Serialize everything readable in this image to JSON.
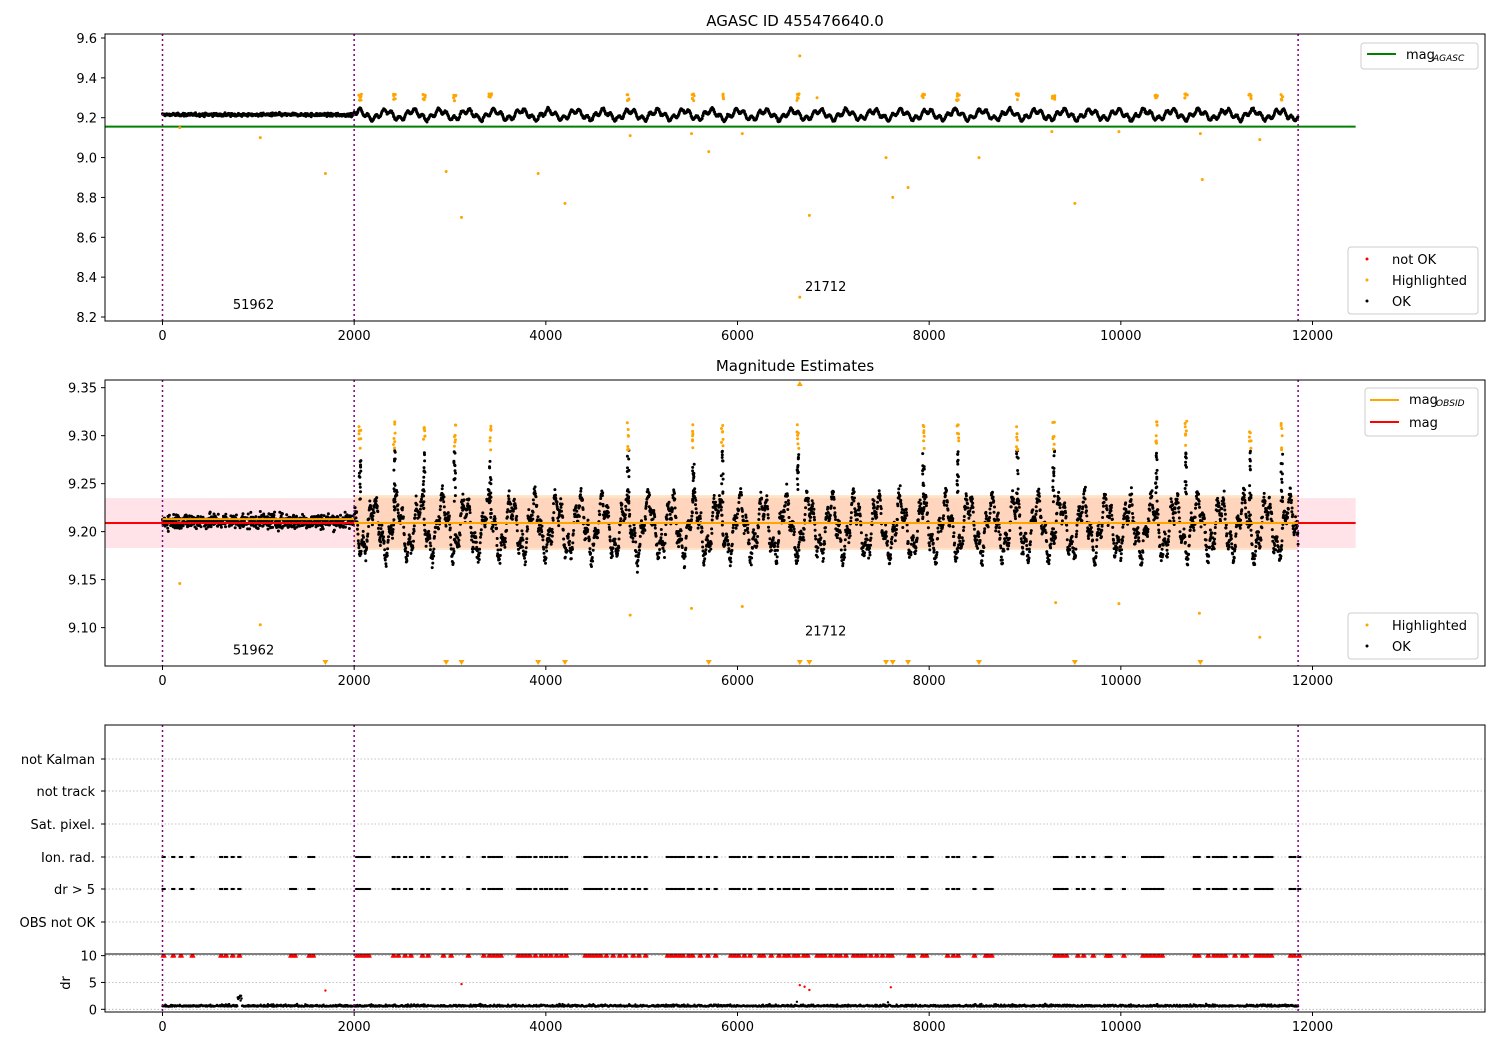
{
  "chart_data": [
    {
      "type": "scatter",
      "title": "AGASC ID 455476640.0",
      "xlim": [
        -600,
        13800
      ],
      "ylim": [
        8.18,
        9.62
      ],
      "xticks": [
        0,
        2000,
        4000,
        6000,
        8000,
        10000,
        12000
      ],
      "yticks": [
        8.2,
        8.4,
        8.6,
        8.8,
        9.0,
        9.2,
        9.4,
        9.6
      ],
      "obs_boundaries": [
        0,
        2000,
        11850
      ],
      "annotations": [
        {
          "text": "51962",
          "x": 950,
          "y": 8.24
        },
        {
          "text": "21712",
          "x": 6920,
          "y": 8.33
        }
      ],
      "reference_lines": [
        {
          "name": "mag_AGASC",
          "label_main": "mag",
          "label_sub": "AGASC",
          "y": 9.155,
          "x_range": [
            -600,
            12450
          ],
          "color": "#008000"
        }
      ],
      "series": [
        {
          "name": "not OK",
          "color": "#ff0000"
        },
        {
          "name": "Highlighted",
          "color": "#ffa500"
        },
        {
          "name": "OK",
          "color": "#000000"
        }
      ],
      "highlighted_outliers": [
        [
          180,
          9.15
        ],
        [
          1020,
          9.1
        ],
        [
          1700,
          8.92
        ],
        [
          2960,
          8.93
        ],
        [
          3120,
          8.7
        ],
        [
          3920,
          8.92
        ],
        [
          4200,
          8.77
        ],
        [
          4880,
          9.11
        ],
        [
          5520,
          9.12
        ],
        [
          5700,
          9.03
        ],
        [
          6050,
          9.12
        ],
        [
          6650,
          9.51
        ],
        [
          6650,
          8.3
        ],
        [
          6750,
          8.71
        ],
        [
          6830,
          9.3
        ],
        [
          7550,
          9.0
        ],
        [
          7620,
          8.8
        ],
        [
          7780,
          8.85
        ],
        [
          8520,
          9.0
        ],
        [
          9280,
          9.13
        ],
        [
          9520,
          8.77
        ],
        [
          9980,
          9.13
        ],
        [
          10830,
          9.12
        ],
        [
          10850,
          8.89
        ],
        [
          11450,
          9.09
        ]
      ],
      "legend_position": "upper-right and lower-right"
    },
    {
      "type": "scatter",
      "title": "Magnitude Estimates",
      "xlim": [
        -600,
        13800
      ],
      "ylim": [
        9.06,
        9.358
      ],
      "xticks": [
        0,
        2000,
        4000,
        6000,
        8000,
        10000,
        12000
      ],
      "yticks": [
        9.1,
        9.15,
        9.2,
        9.25,
        9.3,
        9.35
      ],
      "obs_boundaries": [
        0,
        2000,
        11850
      ],
      "annotations": [
        {
          "text": "51962",
          "x": 950,
          "y": 9.072
        },
        {
          "text": "21712",
          "x": 6920,
          "y": 9.092
        }
      ],
      "reference_lines": [
        {
          "name": "mag",
          "label_main": "mag",
          "y": 9.209,
          "x_range": [
            -600,
            12450
          ],
          "color": "#ff0000"
        },
        {
          "name": "mag_OBSID",
          "label_main": "mag",
          "label_sub": "OBSID",
          "segments": [
            [
              0,
              2000,
              9.213
            ],
            [
              2000,
              11850,
              9.209
            ]
          ],
          "color": "#ffa500"
        }
      ],
      "bands": [
        {
          "x_range": [
            -600,
            12450
          ],
          "y_range": [
            9.183,
            9.235
          ],
          "color": "pink"
        },
        {
          "x_range": [
            2000,
            11850
          ],
          "y_range": [
            9.181,
            9.238
          ],
          "color": "light-orange"
        }
      ],
      "series": [
        {
          "name": "Highlighted",
          "color": "#ffa500"
        },
        {
          "name": "OK",
          "color": "#000000"
        }
      ],
      "spike_centers": [
        2060,
        2420,
        2730,
        3050,
        3420,
        4860,
        5540,
        5840,
        6630,
        7940,
        8300,
        8920,
        9300,
        10370,
        10680,
        11350,
        11680
      ],
      "highlighted_outliers": [
        [
          180,
          9.146
        ],
        [
          1020,
          9.103
        ],
        [
          4880,
          9.113
        ],
        [
          5520,
          9.12
        ],
        [
          6050,
          9.122
        ],
        [
          9320,
          9.126
        ],
        [
          9980,
          9.125
        ],
        [
          10820,
          9.115
        ],
        [
          11450,
          9.09
        ]
      ],
      "below_range_markers_x": [
        1700,
        2960,
        3120,
        3920,
        4200,
        5700,
        6650,
        6750,
        7550,
        7620,
        7780,
        8520,
        9520,
        10830
      ],
      "above_range_markers_x": [
        6650
      ],
      "legend_position": "upper-right and lower-right"
    },
    {
      "type": "scatter",
      "xlim": [
        -600,
        13800
      ],
      "categories": [
        "not Kalman",
        "not track",
        "Sat. pixel.",
        "Ion. rad.",
        "dr > 5",
        "OBS not OK"
      ],
      "obs_boundaries": [
        0,
        2000,
        11850
      ],
      "flag_x": [
        0,
        100,
        180,
        300,
        600,
        650,
        720,
        790,
        1330,
        1370,
        1520,
        1560,
        2020,
        2060,
        2100,
        2140,
        2400,
        2450,
        2520,
        2580,
        2700,
        2760,
        2920,
        3000,
        3180,
        3340,
        3400,
        3440,
        3480,
        3520,
        3700,
        3740,
        3780,
        3820,
        3880,
        3940,
        3990,
        4040,
        4100,
        4150,
        4200,
        4400,
        4440,
        4480,
        4520,
        4560,
        4620,
        4690,
        4760,
        4820,
        4900,
        4960,
        5030,
        5260,
        5300,
        5340,
        5380,
        5420,
        5480,
        5520,
        5600,
        5680,
        5760,
        5920,
        5960,
        6000,
        6060,
        6120,
        6220,
        6260,
        6340,
        6420,
        6480,
        6520,
        6580,
        6620,
        6680,
        6720,
        6820,
        6860,
        6900,
        6960,
        7020,
        7060,
        7120,
        7200,
        7240,
        7280,
        7320,
        7380,
        7440,
        7500,
        7560,
        7600,
        7780,
        7820,
        7920,
        7960,
        8180,
        8240,
        8290,
        8460,
        8580,
        8600,
        8640,
        9300,
        9340,
        9380,
        9420,
        9540,
        9600,
        9700,
        9840,
        9860,
        9880,
        10020,
        10220,
        10260,
        10300,
        10340,
        10380,
        10420,
        10760,
        10800,
        10900,
        10960,
        11000,
        11040,
        11080,
        11180,
        11260,
        11300,
        11400,
        11440,
        11480,
        11520,
        11560,
        11760,
        11800,
        11850
      ]
    },
    {
      "type": "scatter",
      "xlim": [
        -600,
        13800
      ],
      "ylim": [
        -0.5,
        10.3
      ],
      "ylabel": "dr",
      "yticks": [
        0,
        5,
        10
      ],
      "xticks": [
        0,
        2000,
        4000,
        6000,
        8000,
        10000,
        12000
      ],
      "obs_boundaries": [
        0,
        2000,
        11850
      ],
      "clipped_marker_y": 10,
      "scattered_points": [
        [
          1700,
          3.5
        ],
        [
          3120,
          4.7
        ],
        [
          6650,
          4.5
        ],
        [
          6700,
          4.2
        ],
        [
          6750,
          3.6
        ],
        [
          7600,
          4.1
        ],
        [
          6620,
          1.4
        ],
        [
          7570,
          1.3
        ]
      ],
      "baseline_range": [
        0,
        1.2
      ]
    }
  ]
}
